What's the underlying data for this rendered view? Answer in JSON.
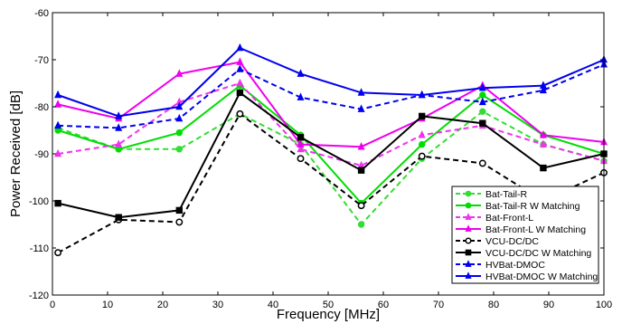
{
  "chart_data": {
    "type": "line",
    "title": "",
    "xlabel": "Frequency [MHz]",
    "ylabel": "Power Received [dB]",
    "xlim": [
      0,
      100
    ],
    "ylim": [
      -120,
      -60
    ],
    "xticks": [
      0,
      10,
      20,
      30,
      40,
      50,
      60,
      70,
      80,
      90,
      100
    ],
    "yticks": [
      -120,
      -110,
      -100,
      -90,
      -80,
      -70,
      -60
    ],
    "grid": false,
    "legend_position": "lower-right",
    "x": [
      1,
      12,
      23,
      34,
      45,
      56,
      67,
      78,
      89,
      100
    ],
    "series": [
      {
        "name": "Bat-Tail-R",
        "color": "#33dd33",
        "dash": "dashed",
        "marker": "circle",
        "values": [
          -84.5,
          -89,
          -89,
          -81.5,
          -88,
          -105,
          -91,
          -81,
          -88,
          -91.5
        ]
      },
      {
        "name": "Bat-Tail-R W Matching",
        "color": "#00dd00",
        "dash": "solid",
        "marker": "circle",
        "values": [
          -85,
          -89,
          -85.5,
          -75.5,
          -86,
          -100.5,
          -88,
          -77.5,
          -86,
          -90
        ]
      },
      {
        "name": "Bat-Front-L",
        "color": "#ee33ee",
        "dash": "dashed",
        "marker": "triangle",
        "values": [
          -90,
          -88,
          -79,
          -75,
          -89,
          -92.5,
          -86,
          -84,
          -88,
          -91.5
        ]
      },
      {
        "name": "Bat-Front-L W Matching",
        "color": "#ee00ee",
        "dash": "solid",
        "marker": "triangle",
        "values": [
          -79.5,
          -82.5,
          -73,
          -70.5,
          -88,
          -88.5,
          -82.5,
          -75.5,
          -86,
          -87.5
        ]
      },
      {
        "name": "VCU-DC/DC",
        "color": "#000000",
        "dash": "dashed",
        "marker": "circle-open",
        "values": [
          -111,
          -104,
          -104.5,
          -81.5,
          -91,
          -101,
          -90.5,
          -92,
          -100,
          -94
        ]
      },
      {
        "name": "VCU-DC/DC W Matching",
        "color": "#000000",
        "dash": "solid",
        "marker": "square",
        "values": [
          -100.5,
          -103.5,
          -102,
          -77,
          -86.5,
          -93.5,
          -82,
          -83.5,
          -93,
          -90
        ]
      },
      {
        "name": "HVBat-DMOC",
        "color": "#0000ee",
        "dash": "dashed",
        "marker": "triangle",
        "values": [
          -84,
          -84.5,
          -82.5,
          -72,
          -78,
          -80.5,
          -77.5,
          -79,
          -76.5,
          -71
        ]
      },
      {
        "name": "HVBat-DMOC W Matching",
        "color": "#0000ee",
        "dash": "solid",
        "marker": "triangle",
        "values": [
          -77.5,
          -82,
          -80,
          -67.5,
          -73,
          -77,
          -77.5,
          -76,
          -75.5,
          -70
        ]
      }
    ]
  }
}
